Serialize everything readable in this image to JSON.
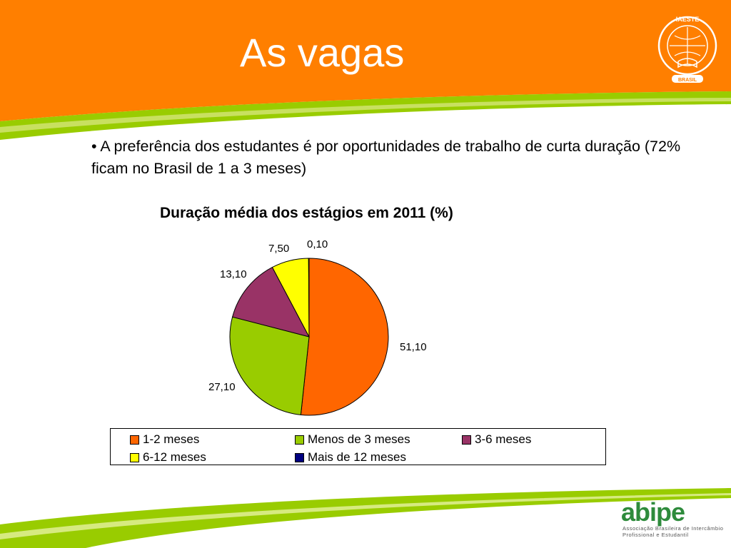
{
  "slide": {
    "title": "As vagas",
    "bullet": "• A preferência dos estudantes é por oportunidades de trabalho de curta duração (72%  ficam no Brasil de 1 a 3 meses)",
    "colors": {
      "header": "#FF7F00",
      "swoosh": "#99CC00"
    }
  },
  "logos": {
    "iaeste_name": "IAESTE",
    "iaeste_sub": "BRASIL",
    "abipe_name": "abipe",
    "abipe_line1": "Associação Brasileira de Intercâmbio",
    "abipe_line2": "Profissional e Estudantil"
  },
  "chart_data": {
    "type": "pie",
    "title": "Duração média dos estágios em 2011 (%)",
    "categories": [
      "1-2 meses",
      "Menos de 3 meses",
      "3-6 meses",
      "6-12 meses",
      "Mais de 12 meses"
    ],
    "values": [
      51.1,
      27.1,
      13.1,
      7.5,
      0.1
    ],
    "value_labels": [
      "51,10",
      "27,10",
      "13,10",
      "7,50",
      "0,10"
    ],
    "colors": [
      "#FF6600",
      "#99CC00",
      "#993366",
      "#FFFF00",
      "#000080"
    ],
    "legend_position": "bottom"
  }
}
